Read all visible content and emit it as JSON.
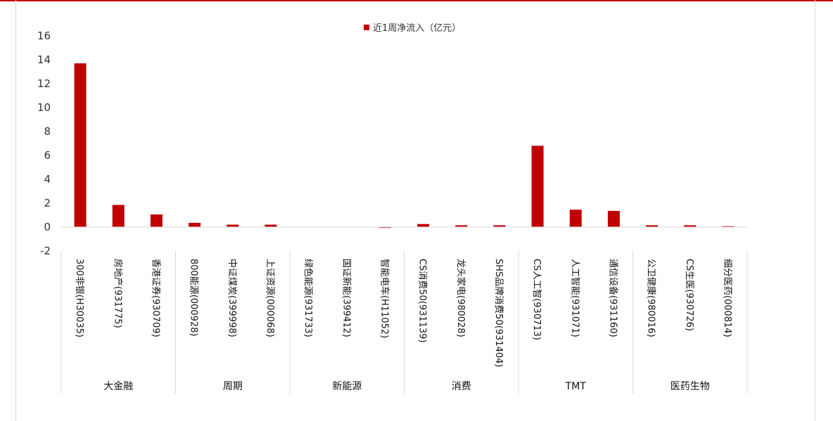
{
  "chart_data": {
    "type": "bar",
    "legend": "近1周净流入（亿元）",
    "legend_position": "top-center",
    "color": "#c00000",
    "ylim": [
      -2,
      16
    ],
    "yticks": [
      -2,
      0,
      2,
      4,
      6,
      8,
      10,
      12,
      14,
      16
    ],
    "grid": false,
    "categories": [
      "300非银(H30035)",
      "房地产(931775)",
      "香港证券(930709)",
      "800能源(000928)",
      "中证煤炭(399998)",
      "上证资源(000068)",
      "绿色能源(931733)",
      "国证新能(399412)",
      "智能电车(H11052)",
      "CS消费50(931139)",
      "龙头家电(980028)",
      "SHS品牌消费50(931404)",
      "CS人工智(930713)",
      "人工智能(931071)",
      "通信设备(931160)",
      "公卫健康(980016)",
      "CS生医(930726)",
      "细分医药(000814)"
    ],
    "values": [
      13.7,
      1.85,
      1.05,
      0.35,
      0.2,
      0.2,
      0.0,
      0.0,
      -0.05,
      0.25,
      0.15,
      0.15,
      6.8,
      1.45,
      1.35,
      0.15,
      0.15,
      0.03
    ],
    "groups": [
      {
        "label": "大金融",
        "span": 3
      },
      {
        "label": "周期",
        "span": 3
      },
      {
        "label": "新能源",
        "span": 3
      },
      {
        "label": "消费",
        "span": 3
      },
      {
        "label": "TMT",
        "span": 3
      },
      {
        "label": "医药生物",
        "span": 3
      }
    ]
  }
}
